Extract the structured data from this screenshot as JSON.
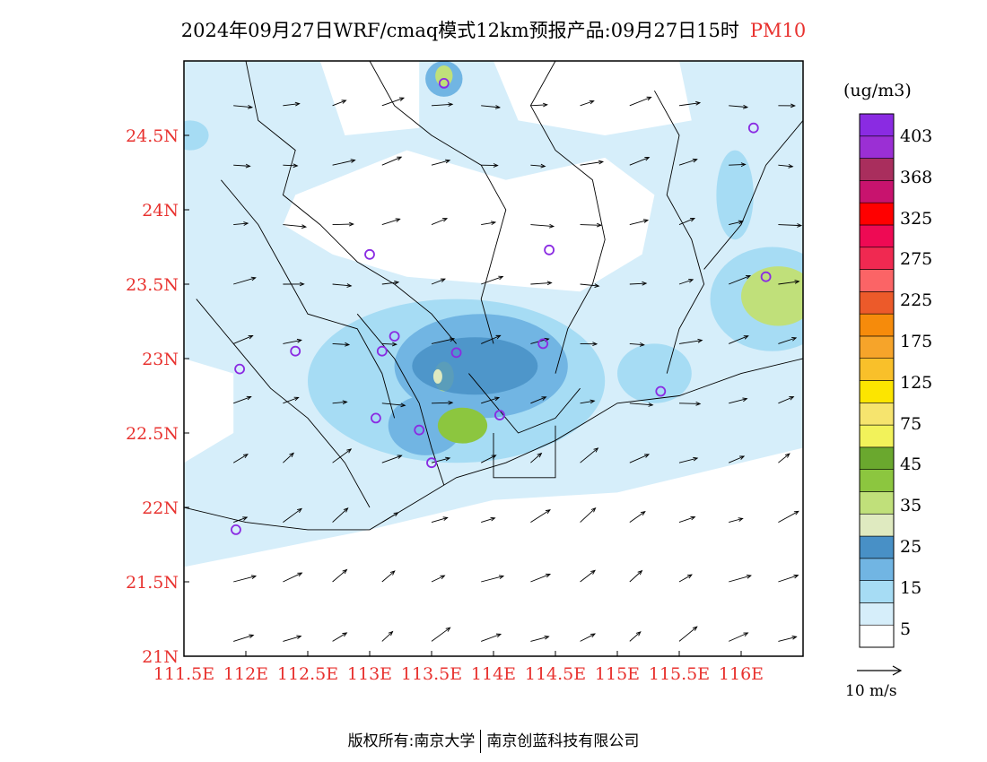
{
  "title": "2024年09月27日WRF/cmaq模式12km预报产品:09月27日15时",
  "variable": "PM10",
  "units": "(ug/m3)",
  "wind_reference": "10 m/s",
  "footer": {
    "left": "版权所有:南京大学",
    "right": "南京创蓝科技有限公司"
  },
  "colors": {
    "axis_labels": "#e8322f",
    "station_marker": "#8a2be2",
    "boundary": "#000000"
  },
  "map": {
    "lon_range": [
      111.5,
      116.5
    ],
    "lat_range": [
      21.0,
      25.0
    ],
    "lon_ticks": [
      "111.5E",
      "112E",
      "112.5E",
      "113E",
      "113.5E",
      "114E",
      "114.5E",
      "115E",
      "115.5E",
      "116E"
    ],
    "lat_ticks": [
      "21N",
      "21.5N",
      "22N",
      "22.5N",
      "23N",
      "23.5N",
      "24N",
      "24.5N"
    ]
  },
  "colorbar": {
    "labels": [
      "403",
      "368",
      "325",
      "275",
      "225",
      "175",
      "125",
      "75",
      "45",
      "35",
      "25",
      "15",
      "5"
    ],
    "colors_bottom_to_top": [
      "#ffffff",
      "#d6eefa",
      "#a6dcf4",
      "#71b5e3",
      "#4890c6",
      "#dfeac0",
      "#c0e07a",
      "#8cc63f",
      "#6aa82e",
      "#f2f25a",
      "#f6e46e",
      "#fce500",
      "#f9c02a",
      "#f6a42a",
      "#f68b0b",
      "#ec5a2a",
      "#fb6466",
      "#f02951",
      "#ee0a54",
      "#ff0000",
      "#c8136e",
      "#a92e5d",
      "#9b2fd4",
      "#8a2be2"
    ]
  },
  "stations": [
    {
      "lon": 113.6,
      "lat": 24.85
    },
    {
      "lon": 116.1,
      "lat": 24.55
    },
    {
      "lon": 113.0,
      "lat": 23.7
    },
    {
      "lon": 114.45,
      "lat": 23.73
    },
    {
      "lon": 116.2,
      "lat": 23.55
    },
    {
      "lon": 113.2,
      "lat": 23.15
    },
    {
      "lon": 112.4,
      "lat": 23.05
    },
    {
      "lon": 113.1,
      "lat": 23.05
    },
    {
      "lon": 113.7,
      "lat": 23.04
    },
    {
      "lon": 114.4,
      "lat": 23.1
    },
    {
      "lon": 111.95,
      "lat": 22.93
    },
    {
      "lon": 115.35,
      "lat": 22.78
    },
    {
      "lon": 113.05,
      "lat": 22.6
    },
    {
      "lon": 113.4,
      "lat": 22.52
    },
    {
      "lon": 114.05,
      "lat": 22.62
    },
    {
      "lon": 113.5,
      "lat": 22.3
    },
    {
      "lon": 111.92,
      "lat": 21.85
    }
  ],
  "pollution_patches": [
    {
      "lon": 113.7,
      "lat": 22.85,
      "rx": 1.2,
      "ry": 0.55,
      "level": 15
    },
    {
      "lon": 113.9,
      "lat": 22.95,
      "rx": 0.7,
      "ry": 0.35,
      "level": 25
    },
    {
      "lon": 113.45,
      "lat": 22.55,
      "rx": 0.3,
      "ry": 0.2,
      "level": 25
    },
    {
      "lon": 113.75,
      "lat": 22.55,
      "rx": 0.2,
      "ry": 0.12,
      "level": 45
    },
    {
      "lon": 113.6,
      "lat": 22.88,
      "rx": 0.08,
      "ry": 0.1,
      "level": 35
    },
    {
      "lon": 113.6,
      "lat": 24.88,
      "rx": 0.15,
      "ry": 0.12,
      "level": 25
    },
    {
      "lon": 113.6,
      "lat": 24.9,
      "rx": 0.07,
      "ry": 0.07,
      "level": 35
    },
    {
      "lon": 116.25,
      "lat": 23.4,
      "rx": 0.5,
      "ry": 0.35,
      "level": 15
    },
    {
      "lon": 116.3,
      "lat": 23.42,
      "rx": 0.3,
      "ry": 0.2,
      "level": 35
    },
    {
      "lon": 115.95,
      "lat": 24.1,
      "rx": 0.15,
      "ry": 0.3,
      "level": 15
    },
    {
      "lon": 115.3,
      "lat": 22.9,
      "rx": 0.3,
      "ry": 0.2,
      "level": 15
    },
    {
      "lon": 111.55,
      "lat": 24.5,
      "rx": 0.15,
      "ry": 0.1,
      "level": 15
    }
  ]
}
